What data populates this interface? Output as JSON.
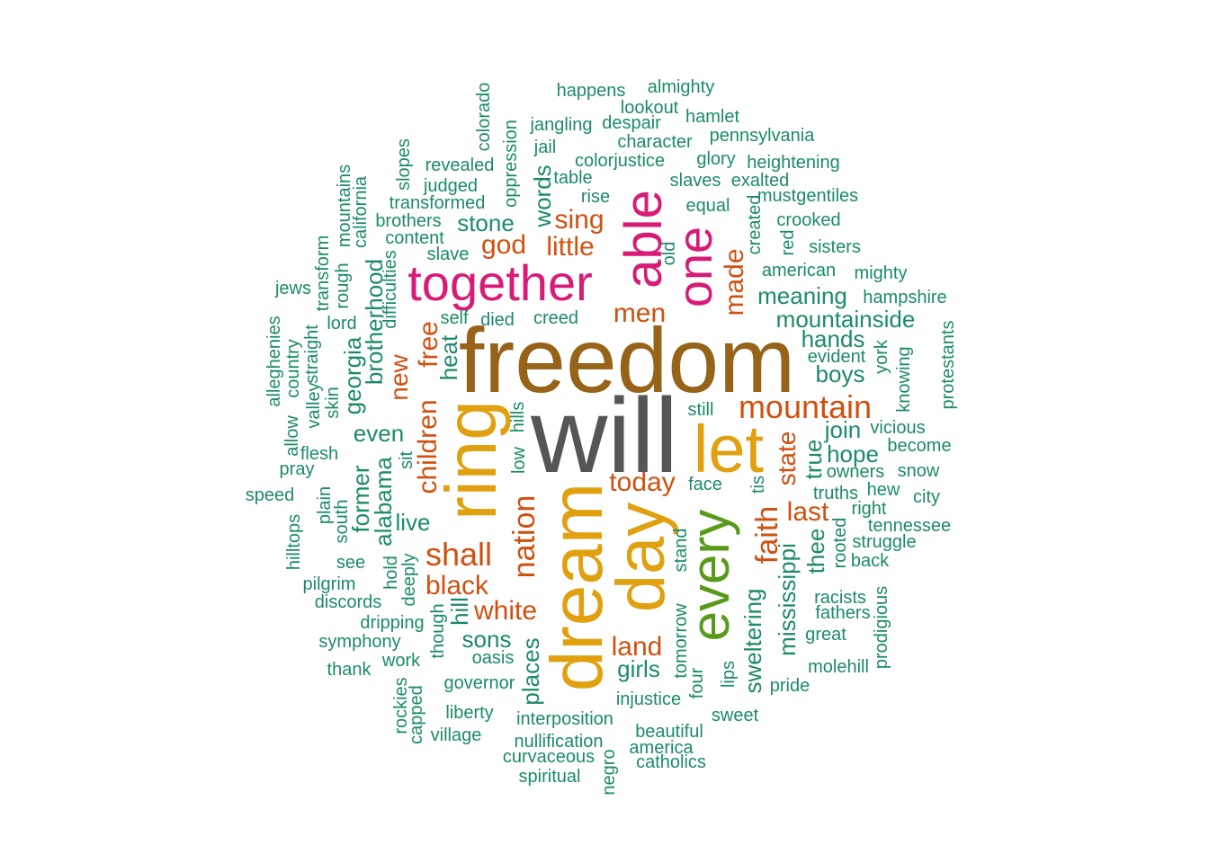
{
  "colors": {
    "tier1": "#555555",
    "tier2": "#966319",
    "tier3": "#E0A010",
    "tier4": "#D81B77",
    "tier5": "#5A9A1A",
    "tier6": "#D05010",
    "tier7": "#1B8A6B"
  },
  "words": [
    "will",
    "freedom",
    "ring",
    "dream",
    "day",
    "let",
    "every",
    "together",
    "able",
    "one",
    "mountain",
    "nation",
    "faith",
    "shall",
    "god",
    "sing",
    "little",
    "made",
    "men",
    "free",
    "today",
    "children",
    "white",
    "land",
    "black",
    "last",
    "state",
    "new",
    "heat",
    "meaning",
    "mountainside",
    "hands",
    "boys",
    "join",
    "hope",
    "true",
    "mississippi",
    "sweltering",
    "alabama",
    "georgia",
    "brotherhood",
    "former",
    "live",
    "even",
    "stone",
    "words",
    "sons",
    "girls",
    "places",
    "hill",
    "thee",
    "happens",
    "almighty",
    "lookout",
    "hamlet",
    "despair",
    "jangling",
    "character",
    "pennsylvania",
    "colorado",
    "oppression",
    "jail",
    "colorjustice",
    "glory",
    "heightening",
    "revealed",
    "table",
    "slaves",
    "exalted",
    "judged",
    "slopes",
    "rise",
    "mustgentiles",
    "equal",
    "transformed",
    "brothers",
    "crooked",
    "created",
    "content",
    "red",
    "sisters",
    "slave",
    "old",
    "american",
    "mighty",
    "mountains",
    "california",
    "transform",
    "jews",
    "rough",
    "difficulties",
    "hampshire",
    "self",
    "died",
    "creed",
    "lord",
    "straight",
    "alleghenies",
    "country",
    "evident",
    "york",
    "protestants",
    "knowing",
    "valley",
    "skin",
    "hills",
    "still",
    "vicious",
    "flesh",
    "allow",
    "become",
    "pray",
    "sit",
    "low",
    "owners",
    "snow",
    "face",
    "tis",
    "speed",
    "truths",
    "hew",
    "city",
    "right",
    "plain",
    "south",
    "tennessee",
    "struggle",
    "rooted",
    "hilltops",
    "see",
    "back",
    "stand",
    "hold",
    "deeply",
    "pilgrim",
    "discords",
    "racists",
    "fathers",
    "prodigious",
    "dripping",
    "though",
    "symphony",
    "great",
    "tomorrow",
    "oasis",
    "work",
    "molehill",
    "thank",
    "four",
    "lips",
    "governor",
    "pride",
    "rockies",
    "capped",
    "injustice",
    "liberty",
    "sweet",
    "interposition",
    "beautiful",
    "village",
    "nullification",
    "america",
    "negro",
    "curvaceous",
    "catholics",
    "spiritual"
  ]
}
